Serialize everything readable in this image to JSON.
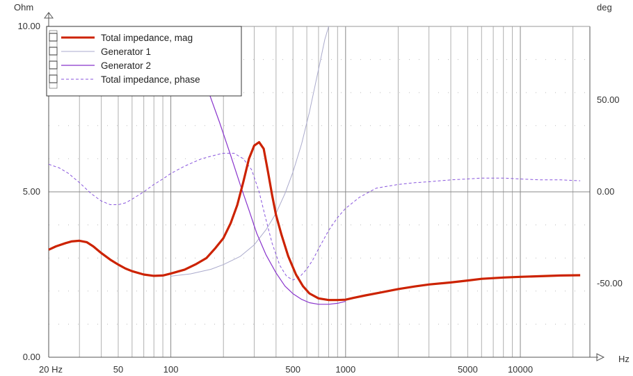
{
  "chart_data": {
    "type": "line",
    "x_scale": "log",
    "xlim": [
      20,
      25000
    ],
    "y_left": {
      "unit": "Ohm",
      "ylim": [
        0,
        10
      ],
      "ticks": [
        {
          "v": 0,
          "label": "0.00"
        },
        {
          "v": 5,
          "label": "5.00"
        },
        {
          "v": 10,
          "label": "10.00"
        }
      ]
    },
    "y_right": {
      "unit": "deg",
      "ylim": [
        -90,
        90
      ],
      "ticks": [
        {
          "v": 50,
          "label": "50.00"
        },
        {
          "v": 0,
          "label": "0.00"
        },
        {
          "v": -50,
          "label": "-50.00"
        }
      ]
    },
    "x_unit": "Hz",
    "x_ticks": [
      {
        "v": 20,
        "label": "20 Hz"
      },
      {
        "v": 50,
        "label": "50"
      },
      {
        "v": 100,
        "label": "100"
      },
      {
        "v": 500,
        "label": "500"
      },
      {
        "v": 1000,
        "label": "1000"
      },
      {
        "v": 5000,
        "label": "5000"
      },
      {
        "v": 10000,
        "label": "10000"
      }
    ],
    "grid": true,
    "legend_position": "top-left",
    "legend": [
      {
        "label": "Total impedance, mag",
        "color": "#cc2200",
        "style": "solid-thick"
      },
      {
        "label": "Generator 1",
        "color": "#aaaacc",
        "style": "solid"
      },
      {
        "label": "Generator 2",
        "color": "#8833cc",
        "style": "solid"
      },
      {
        "label": "Total impedance, phase",
        "color": "#8855dd",
        "style": "dashed"
      }
    ],
    "series": [
      {
        "name": "Total impedance, mag",
        "axis": "left",
        "color": "#cc2200",
        "width": 3.2,
        "dash": "",
        "points": [
          [
            20,
            3.25
          ],
          [
            22,
            3.35
          ],
          [
            25,
            3.45
          ],
          [
            27,
            3.5
          ],
          [
            30,
            3.52
          ],
          [
            33,
            3.48
          ],
          [
            36,
            3.35
          ],
          [
            40,
            3.15
          ],
          [
            45,
            2.95
          ],
          [
            50,
            2.8
          ],
          [
            55,
            2.68
          ],
          [
            60,
            2.6
          ],
          [
            70,
            2.5
          ],
          [
            80,
            2.46
          ],
          [
            90,
            2.47
          ],
          [
            100,
            2.53
          ],
          [
            120,
            2.65
          ],
          [
            140,
            2.82
          ],
          [
            160,
            3.0
          ],
          [
            180,
            3.3
          ],
          [
            200,
            3.6
          ],
          [
            220,
            4.05
          ],
          [
            240,
            4.6
          ],
          [
            260,
            5.3
          ],
          [
            280,
            6.0
          ],
          [
            300,
            6.4
          ],
          [
            320,
            6.5
          ],
          [
            340,
            6.3
          ],
          [
            360,
            5.6
          ],
          [
            380,
            4.9
          ],
          [
            400,
            4.3
          ],
          [
            430,
            3.7
          ],
          [
            470,
            3.05
          ],
          [
            520,
            2.5
          ],
          [
            570,
            2.15
          ],
          [
            620,
            1.93
          ],
          [
            700,
            1.78
          ],
          [
            800,
            1.73
          ],
          [
            900,
            1.73
          ],
          [
            1000,
            1.74
          ],
          [
            1100,
            1.79
          ],
          [
            1300,
            1.87
          ],
          [
            1600,
            1.96
          ],
          [
            2000,
            2.06
          ],
          [
            2500,
            2.14
          ],
          [
            3000,
            2.2
          ],
          [
            4000,
            2.26
          ],
          [
            5000,
            2.32
          ],
          [
            6000,
            2.37
          ],
          [
            8000,
            2.41
          ],
          [
            10000,
            2.43
          ],
          [
            13000,
            2.45
          ],
          [
            17000,
            2.47
          ],
          [
            22000,
            2.48
          ]
        ]
      },
      {
        "name": "Generator 1",
        "axis": "left",
        "color": "#aaaacc",
        "width": 1,
        "dash": "",
        "points": [
          [
            100,
            2.45
          ],
          [
            130,
            2.52
          ],
          [
            170,
            2.66
          ],
          [
            200,
            2.8
          ],
          [
            250,
            3.05
          ],
          [
            300,
            3.4
          ],
          [
            350,
            3.85
          ],
          [
            400,
            4.35
          ],
          [
            450,
            4.95
          ],
          [
            500,
            5.6
          ],
          [
            560,
            6.45
          ],
          [
            620,
            7.4
          ],
          [
            700,
            8.7
          ],
          [
            760,
            9.6
          ],
          [
            800,
            10.0
          ]
        ]
      },
      {
        "name": "Generator 2",
        "axis": "left",
        "color": "#8833cc",
        "width": 1.2,
        "dash": "",
        "points": [
          [
            165,
            8.0
          ],
          [
            190,
            7.1
          ],
          [
            220,
            6.1
          ],
          [
            250,
            5.2
          ],
          [
            280,
            4.45
          ],
          [
            310,
            3.75
          ],
          [
            350,
            3.1
          ],
          [
            400,
            2.55
          ],
          [
            450,
            2.15
          ],
          [
            500,
            1.92
          ],
          [
            560,
            1.75
          ],
          [
            620,
            1.65
          ],
          [
            700,
            1.6
          ],
          [
            800,
            1.6
          ],
          [
            900,
            1.63
          ],
          [
            1000,
            1.69
          ]
        ]
      },
      {
        "name": "Total impedance, phase",
        "axis": "right",
        "color": "#8855dd",
        "width": 1,
        "dash": "4,3",
        "points": [
          [
            20,
            15
          ],
          [
            23,
            13
          ],
          [
            26,
            10
          ],
          [
            30,
            5
          ],
          [
            35,
            -1
          ],
          [
            40,
            -5
          ],
          [
            45,
            -7
          ],
          [
            50,
            -7
          ],
          [
            55,
            -6
          ],
          [
            60,
            -4
          ],
          [
            70,
            0
          ],
          [
            80,
            4
          ],
          [
            90,
            7
          ],
          [
            100,
            10
          ],
          [
            120,
            14
          ],
          [
            150,
            18
          ],
          [
            180,
            20
          ],
          [
            200,
            21
          ],
          [
            230,
            21
          ],
          [
            260,
            18
          ],
          [
            290,
            12
          ],
          [
            320,
            0
          ],
          [
            350,
            -15
          ],
          [
            380,
            -28
          ],
          [
            420,
            -40
          ],
          [
            460,
            -46
          ],
          [
            500,
            -48
          ],
          [
            550,
            -46
          ],
          [
            600,
            -42
          ],
          [
            650,
            -37
          ],
          [
            700,
            -31
          ],
          [
            800,
            -21
          ],
          [
            900,
            -14
          ],
          [
            1000,
            -9
          ],
          [
            1200,
            -3
          ],
          [
            1500,
            2
          ],
          [
            2000,
            4
          ],
          [
            2500,
            5
          ],
          [
            3000,
            5.5
          ],
          [
            4000,
            6.5
          ],
          [
            5000,
            7
          ],
          [
            6000,
            7.5
          ],
          [
            8000,
            7.5
          ],
          [
            10000,
            7
          ],
          [
            13000,
            6.5
          ],
          [
            17000,
            6.5
          ],
          [
            22000,
            6
          ]
        ]
      }
    ]
  }
}
